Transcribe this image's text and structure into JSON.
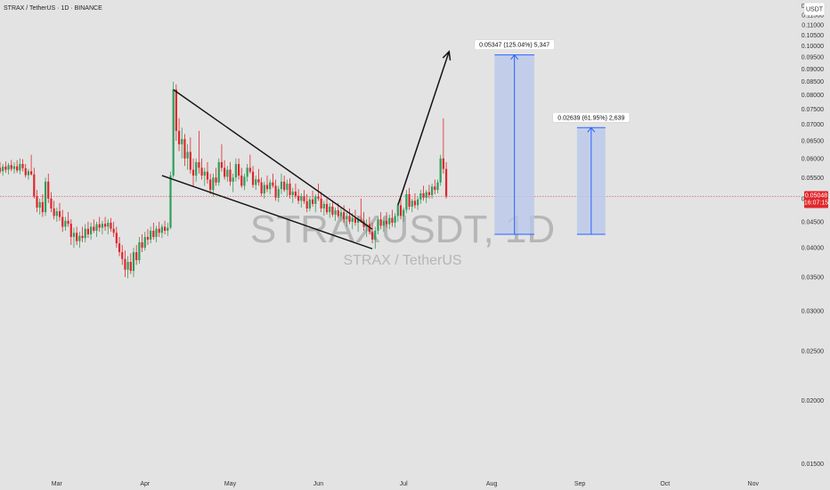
{
  "header": {
    "title": "STRAX / TetherUS · 1D · BINANCE"
  },
  "watermark": {
    "symbol": "STRAXUSDT, 1D",
    "pair": "STRAX / TetherUS"
  },
  "axis": {
    "currency": "USDT"
  },
  "current_price": {
    "value": "0.05048",
    "countdown": "16:07:15",
    "color": "#e0262c"
  },
  "measure_labels": {
    "primary": "0.05347 (125.04%) 5,347",
    "secondary": "0.02639 (61.95%) 2,639"
  },
  "colors": {
    "up": "#2e9f5a",
    "down": "#e0262c",
    "measure": "#2962ff",
    "measure_fill": "#b9c8ea",
    "bg": "#e3e3e3"
  },
  "chart_data": {
    "type": "candlestick",
    "title": "STRAX / TetherUS · 1D · BINANCE",
    "xlabel": "",
    "ylabel": "USDT",
    "y_scale": "log",
    "ylim": [
      0.0142,
      0.1232
    ],
    "y_ticks": [
      "0.12000",
      "0.11500",
      "0.11000",
      "0.10500",
      "0.10000",
      "0.09500",
      "0.09000",
      "0.08500",
      "0.08000",
      "0.07500",
      "0.07000",
      "0.06500",
      "0.06000",
      "0.05500",
      "0.05000",
      "0.04500",
      "0.04000",
      "0.03500",
      "0.03000",
      "0.02500",
      "0.02000",
      "0.01500"
    ],
    "x_ticks": [
      "Mar",
      "Apr",
      "May",
      "Jun",
      "Jul",
      "Aug",
      "Sep",
      "Oct",
      "Nov"
    ],
    "x_tick_days": [
      0,
      31,
      61,
      92,
      122,
      153,
      184,
      214,
      245
    ],
    "x_range_days": [
      -20,
      262
    ],
    "candles": [
      [
        -20,
        0.0575,
        0.059,
        0.056,
        0.0565
      ],
      [
        -19,
        0.0566,
        0.0585,
        0.0555,
        0.0578
      ],
      [
        -18,
        0.0578,
        0.0592,
        0.0562,
        0.057
      ],
      [
        -17,
        0.057,
        0.0588,
        0.0558,
        0.0582
      ],
      [
        -16,
        0.0582,
        0.0596,
        0.0566,
        0.0572
      ],
      [
        -15,
        0.0572,
        0.059,
        0.056,
        0.0579
      ],
      [
        -14,
        0.0579,
        0.0595,
        0.0562,
        0.0568
      ],
      [
        -13,
        0.0568,
        0.06,
        0.0558,
        0.0585
      ],
      [
        -12,
        0.0585,
        0.0598,
        0.0565,
        0.0574
      ],
      [
        -11,
        0.0574,
        0.0585,
        0.055,
        0.0556
      ],
      [
        -10,
        0.0556,
        0.0572,
        0.0545,
        0.0566
      ],
      [
        -9,
        0.0566,
        0.061,
        0.0555,
        0.0558
      ],
      [
        -8,
        0.0558,
        0.0575,
        0.05,
        0.0505
      ],
      [
        -7,
        0.0505,
        0.052,
        0.047,
        0.048
      ],
      [
        -6,
        0.048,
        0.05,
        0.0465,
        0.0492
      ],
      [
        -5,
        0.0492,
        0.051,
        0.046,
        0.047
      ],
      [
        -4,
        0.047,
        0.055,
        0.0462,
        0.054
      ],
      [
        -3,
        0.054,
        0.056,
        0.049,
        0.05
      ],
      [
        -2,
        0.05,
        0.0515,
        0.047,
        0.0478
      ],
      [
        -1,
        0.0478,
        0.0495,
        0.0455,
        0.0462
      ],
      [
        0,
        0.0462,
        0.048,
        0.045,
        0.0472
      ],
      [
        1,
        0.0472,
        0.049,
        0.0452,
        0.046
      ],
      [
        2,
        0.046,
        0.0475,
        0.043,
        0.044
      ],
      [
        3,
        0.044,
        0.046,
        0.0432,
        0.0452
      ],
      [
        4,
        0.0452,
        0.047,
        0.044,
        0.0446
      ],
      [
        5,
        0.0446,
        0.0455,
        0.0405,
        0.042
      ],
      [
        6,
        0.042,
        0.0438,
        0.04,
        0.0428
      ],
      [
        7,
        0.0428,
        0.044,
        0.0405,
        0.0412
      ],
      [
        8,
        0.0412,
        0.043,
        0.04,
        0.0422
      ],
      [
        9,
        0.0422,
        0.044,
        0.041,
        0.0418
      ],
      [
        10,
        0.0418,
        0.0445,
        0.041,
        0.0436
      ],
      [
        11,
        0.0436,
        0.045,
        0.0418,
        0.0425
      ],
      [
        12,
        0.0425,
        0.0448,
        0.0415,
        0.044
      ],
      [
        13,
        0.044,
        0.0455,
        0.0428,
        0.0432
      ],
      [
        14,
        0.0432,
        0.045,
        0.042,
        0.0445
      ],
      [
        15,
        0.0445,
        0.046,
        0.043,
        0.0438
      ],
      [
        16,
        0.0438,
        0.0452,
        0.0425,
        0.0446
      ],
      [
        17,
        0.0446,
        0.046,
        0.0432,
        0.044
      ],
      [
        18,
        0.044,
        0.0455,
        0.0425,
        0.0448
      ],
      [
        19,
        0.0448,
        0.0458,
        0.043,
        0.0436
      ],
      [
        20,
        0.0436,
        0.045,
        0.042,
        0.0428
      ],
      [
        21,
        0.0428,
        0.044,
        0.04,
        0.0408
      ],
      [
        22,
        0.0408,
        0.042,
        0.0385,
        0.0392
      ],
      [
        23,
        0.0392,
        0.0405,
        0.037,
        0.038
      ],
      [
        24,
        0.038,
        0.0395,
        0.035,
        0.0362
      ],
      [
        25,
        0.0362,
        0.0385,
        0.0348,
        0.0375
      ],
      [
        26,
        0.0375,
        0.039,
        0.0355,
        0.036
      ],
      [
        27,
        0.036,
        0.04,
        0.035,
        0.0392
      ],
      [
        28,
        0.0392,
        0.0405,
        0.037,
        0.0378
      ],
      [
        29,
        0.0378,
        0.042,
        0.0372,
        0.041
      ],
      [
        30,
        0.041,
        0.0425,
        0.0392,
        0.04
      ],
      [
        31,
        0.04,
        0.043,
        0.0395,
        0.042
      ],
      [
        32,
        0.042,
        0.0435,
        0.0405,
        0.0415
      ],
      [
        33,
        0.0415,
        0.044,
        0.0408,
        0.0432
      ],
      [
        34,
        0.0432,
        0.0448,
        0.0415,
        0.042
      ],
      [
        35,
        0.042,
        0.0442,
        0.041,
        0.0436
      ],
      [
        36,
        0.0436,
        0.045,
        0.042,
        0.0428
      ],
      [
        37,
        0.0428,
        0.0445,
        0.0418,
        0.044
      ],
      [
        38,
        0.044,
        0.0452,
        0.0425,
        0.0432
      ],
      [
        39,
        0.0432,
        0.0448,
        0.0422,
        0.0438
      ],
      [
        40,
        0.0438,
        0.0565,
        0.0435,
        0.0555
      ],
      [
        41,
        0.0555,
        0.085,
        0.055,
        0.082
      ],
      [
        42,
        0.082,
        0.084,
        0.065,
        0.068
      ],
      [
        43,
        0.068,
        0.072,
        0.062,
        0.064
      ],
      [
        44,
        0.064,
        0.069,
        0.06,
        0.0655
      ],
      [
        45,
        0.0655,
        0.067,
        0.058,
        0.06
      ],
      [
        46,
        0.06,
        0.064,
        0.057,
        0.0618
      ],
      [
        47,
        0.0618,
        0.066,
        0.056,
        0.057
      ],
      [
        48,
        0.057,
        0.06,
        0.053,
        0.0555
      ],
      [
        49,
        0.0555,
        0.06,
        0.054,
        0.059
      ],
      [
        50,
        0.059,
        0.068,
        0.056,
        0.0575
      ],
      [
        51,
        0.0575,
        0.06,
        0.0545,
        0.0555
      ],
      [
        52,
        0.0555,
        0.0575,
        0.053,
        0.0565
      ],
      [
        53,
        0.0565,
        0.059,
        0.0535,
        0.0545
      ],
      [
        54,
        0.0545,
        0.056,
        0.051,
        0.052
      ],
      [
        55,
        0.052,
        0.056,
        0.0505,
        0.055
      ],
      [
        56,
        0.055,
        0.0575,
        0.053,
        0.0538
      ],
      [
        57,
        0.0538,
        0.06,
        0.053,
        0.059
      ],
      [
        58,
        0.059,
        0.064,
        0.0565,
        0.0575
      ],
      [
        59,
        0.0575,
        0.0595,
        0.0545,
        0.0552
      ],
      [
        60,
        0.0552,
        0.058,
        0.054,
        0.057
      ],
      [
        61,
        0.057,
        0.059,
        0.053,
        0.054
      ],
      [
        62,
        0.054,
        0.056,
        0.0515,
        0.055
      ],
      [
        63,
        0.055,
        0.06,
        0.054,
        0.0585
      ],
      [
        64,
        0.0585,
        0.06,
        0.0545,
        0.0555
      ],
      [
        65,
        0.0555,
        0.0575,
        0.0525,
        0.053
      ],
      [
        66,
        0.053,
        0.056,
        0.052,
        0.0552
      ],
      [
        67,
        0.0552,
        0.0585,
        0.054,
        0.0575
      ],
      [
        68,
        0.0575,
        0.061,
        0.056,
        0.0565
      ],
      [
        69,
        0.0565,
        0.058,
        0.0525,
        0.0532
      ],
      [
        70,
        0.0532,
        0.0555,
        0.052,
        0.0546
      ],
      [
        71,
        0.0546,
        0.0572,
        0.053,
        0.0538
      ],
      [
        72,
        0.0538,
        0.055,
        0.0505,
        0.0512
      ],
      [
        73,
        0.0512,
        0.054,
        0.05,
        0.0532
      ],
      [
        74,
        0.0532,
        0.0555,
        0.0515,
        0.0522
      ],
      [
        75,
        0.0522,
        0.0545,
        0.051,
        0.0538
      ],
      [
        76,
        0.0538,
        0.056,
        0.0525,
        0.053
      ],
      [
        77,
        0.053,
        0.0545,
        0.0495,
        0.0502
      ],
      [
        78,
        0.0502,
        0.053,
        0.0492,
        0.0522
      ],
      [
        79,
        0.0522,
        0.056,
        0.051,
        0.054
      ],
      [
        80,
        0.054,
        0.0555,
        0.0515,
        0.052
      ],
      [
        81,
        0.052,
        0.0545,
        0.0505,
        0.0535
      ],
      [
        82,
        0.0535,
        0.0548,
        0.05,
        0.0508
      ],
      [
        83,
        0.0508,
        0.0525,
        0.049,
        0.0516
      ],
      [
        84,
        0.0516,
        0.0535,
        0.05,
        0.0506
      ],
      [
        85,
        0.0506,
        0.0522,
        0.0488,
        0.0495
      ],
      [
        86,
        0.0495,
        0.0512,
        0.048,
        0.0505
      ],
      [
        87,
        0.0505,
        0.052,
        0.0488,
        0.0494
      ],
      [
        88,
        0.0494,
        0.051,
        0.047,
        0.0478
      ],
      [
        89,
        0.0478,
        0.0505,
        0.0472,
        0.0498
      ],
      [
        90,
        0.0498,
        0.0518,
        0.0482,
        0.0488
      ],
      [
        91,
        0.0488,
        0.051,
        0.047,
        0.0505
      ],
      [
        92,
        0.0505,
        0.0535,
        0.0495,
        0.05
      ],
      [
        93,
        0.05,
        0.0515,
        0.047,
        0.0478
      ],
      [
        94,
        0.0478,
        0.0495,
        0.0462,
        0.0488
      ],
      [
        95,
        0.0488,
        0.05,
        0.0465,
        0.047
      ],
      [
        96,
        0.047,
        0.049,
        0.0458,
        0.0482
      ],
      [
        97,
        0.0482,
        0.0495,
        0.046,
        0.0465
      ],
      [
        98,
        0.0465,
        0.048,
        0.0452,
        0.0474
      ],
      [
        99,
        0.0474,
        0.049,
        0.0458,
        0.0462
      ],
      [
        100,
        0.0462,
        0.048,
        0.045,
        0.047
      ],
      [
        101,
        0.047,
        0.0485,
        0.0448,
        0.0455
      ],
      [
        102,
        0.0455,
        0.047,
        0.044,
        0.0462
      ],
      [
        103,
        0.0462,
        0.0478,
        0.0445,
        0.045
      ],
      [
        104,
        0.045,
        0.0468,
        0.0435,
        0.0458
      ],
      [
        105,
        0.0458,
        0.0475,
        0.0442,
        0.0448
      ],
      [
        106,
        0.0448,
        0.0462,
        0.043,
        0.0455
      ],
      [
        107,
        0.0455,
        0.05,
        0.0448,
        0.0452
      ],
      [
        108,
        0.0452,
        0.047,
        0.0432,
        0.044
      ],
      [
        109,
        0.044,
        0.0455,
        0.042,
        0.0445
      ],
      [
        110,
        0.0445,
        0.046,
        0.0425,
        0.043
      ],
      [
        111,
        0.043,
        0.0448,
        0.0408,
        0.0415
      ],
      [
        112,
        0.0415,
        0.044,
        0.0398,
        0.0432
      ],
      [
        113,
        0.0432,
        0.046,
        0.0425,
        0.0455
      ],
      [
        114,
        0.0455,
        0.047,
        0.0435,
        0.0442
      ],
      [
        115,
        0.0442,
        0.046,
        0.043,
        0.0452
      ],
      [
        116,
        0.0452,
        0.047,
        0.0438,
        0.0445
      ],
      [
        117,
        0.0445,
        0.0465,
        0.0435,
        0.0458
      ],
      [
        118,
        0.0458,
        0.0475,
        0.044,
        0.0448
      ],
      [
        119,
        0.0448,
        0.0468,
        0.0438,
        0.0462
      ],
      [
        120,
        0.0462,
        0.049,
        0.045,
        0.0485
      ],
      [
        121,
        0.0485,
        0.05,
        0.0455,
        0.0462
      ],
      [
        122,
        0.0462,
        0.048,
        0.045,
        0.0475
      ],
      [
        123,
        0.0475,
        0.052,
        0.0468,
        0.051
      ],
      [
        124,
        0.051,
        0.0525,
        0.0475,
        0.0482
      ],
      [
        125,
        0.0482,
        0.05,
        0.047,
        0.0495
      ],
      [
        126,
        0.0495,
        0.0512,
        0.0478,
        0.0485
      ],
      [
        127,
        0.0485,
        0.0505,
        0.0475,
        0.0498
      ],
      [
        128,
        0.0498,
        0.052,
        0.0488,
        0.0512
      ],
      [
        129,
        0.0512,
        0.053,
        0.0495,
        0.0502
      ],
      [
        130,
        0.0502,
        0.052,
        0.049,
        0.0515
      ],
      [
        131,
        0.0515,
        0.0532,
        0.05,
        0.0508
      ],
      [
        132,
        0.0508,
        0.0535,
        0.05,
        0.0528
      ],
      [
        133,
        0.0528,
        0.0545,
        0.051,
        0.052
      ],
      [
        134,
        0.052,
        0.0545,
        0.0512,
        0.0538
      ],
      [
        135,
        0.0538,
        0.061,
        0.053,
        0.06
      ],
      [
        136,
        0.06,
        0.072,
        0.056,
        0.0572
      ],
      [
        137,
        0.0572,
        0.059,
        0.05,
        0.0505
      ]
    ],
    "drawings": {
      "wedge_upper": [
        [
          41,
          0.082
        ],
        [
          111,
          0.0435
        ]
      ],
      "wedge_lower": [
        [
          37,
          0.0555
        ],
        [
          111,
          0.0398
        ]
      ],
      "breakout_arrow": [
        [
          120,
          0.0485
        ],
        [
          138,
          0.0975
        ]
      ],
      "measure_primary": {
        "day_from": 154,
        "day_to": 168,
        "price_from": 0.0425,
        "price_to": 0.096
      },
      "measure_secondary": {
        "day_from": 183,
        "day_to": 193,
        "price_from": 0.0425,
        "price_to": 0.069
      }
    },
    "last_price": 0.05048
  }
}
